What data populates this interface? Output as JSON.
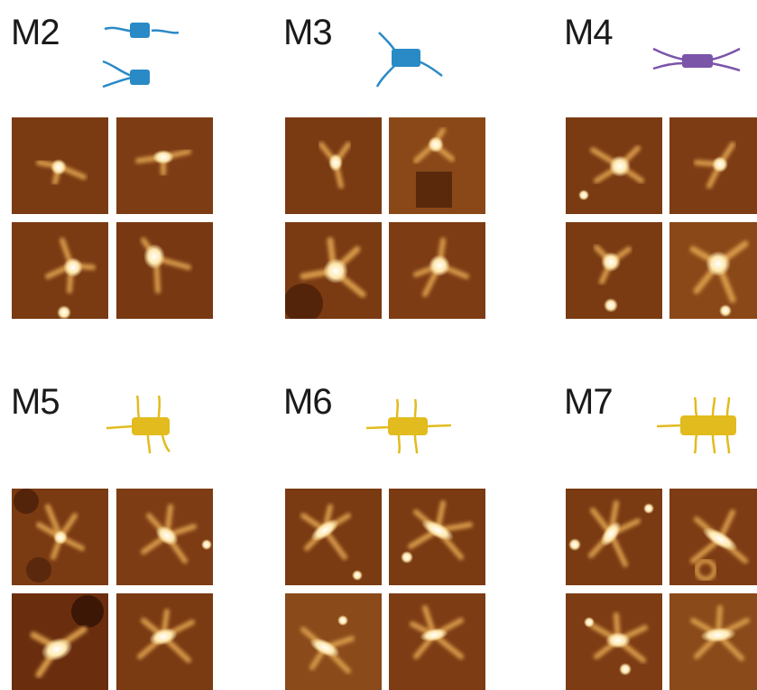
{
  "colors": {
    "blue": "#2a8ac6",
    "purple": "#7a55a8",
    "yellow": "#e2bb1e",
    "substrate": "#7a3a12",
    "bright": "#ffffff",
    "halo": "#f0c060"
  },
  "panels": [
    {
      "id": "M2",
      "label": "M2",
      "color": "blue"
    },
    {
      "id": "M3",
      "label": "M3",
      "color": "blue"
    },
    {
      "id": "M4",
      "label": "M4",
      "color": "purple"
    },
    {
      "id": "M5",
      "label": "M5",
      "color": "yellow"
    },
    {
      "id": "M6",
      "label": "M6",
      "color": "yellow"
    },
    {
      "id": "M7",
      "label": "M7",
      "color": "yellow"
    }
  ]
}
